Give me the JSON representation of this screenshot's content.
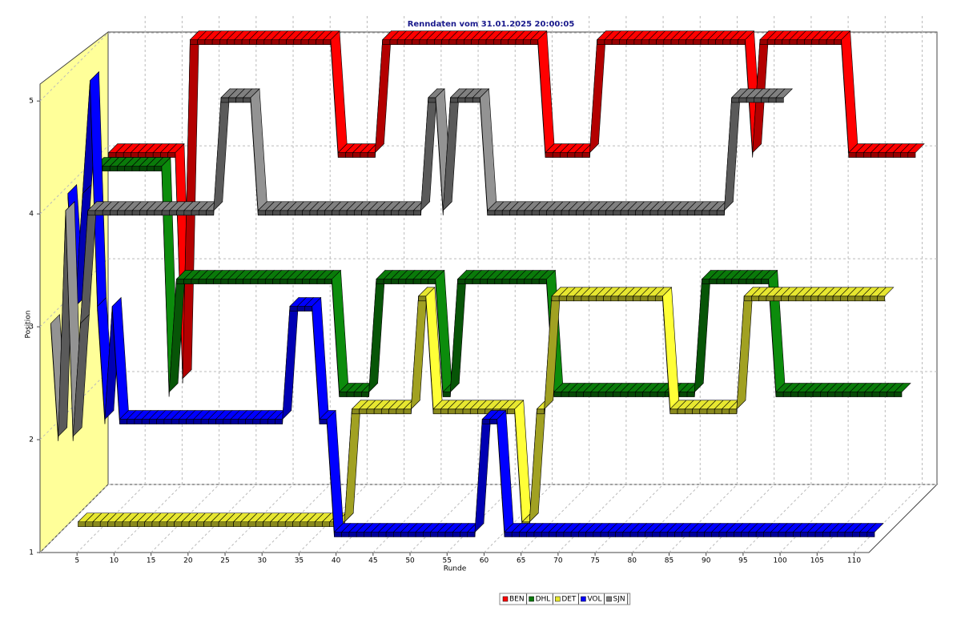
{
  "chart_data": {
    "type": "ribbon3d",
    "title": "Renndaten vom 31.01.2025 20:00:05",
    "xlabel": "Runde",
    "ylabel": "Position",
    "x": [
      1,
      2,
      3,
      4,
      5,
      6,
      7,
      8,
      9,
      10,
      11,
      12,
      13,
      14,
      15,
      16,
      17,
      18,
      19,
      20,
      21,
      22,
      23,
      24,
      25,
      26,
      27,
      28,
      29,
      30,
      31,
      32,
      33,
      34,
      35,
      36,
      37,
      38,
      39,
      40,
      41,
      42,
      43,
      44,
      45,
      46,
      47,
      48,
      49,
      50,
      51,
      52,
      53,
      54,
      55,
      56,
      57,
      58,
      59,
      60,
      61,
      62,
      63,
      64,
      65,
      66,
      67,
      68,
      69,
      70,
      71,
      72,
      73,
      74,
      75,
      76,
      77,
      78,
      79,
      80,
      81,
      82,
      83,
      84,
      85,
      86,
      87,
      88,
      89,
      90,
      91,
      92,
      93,
      94,
      95,
      96,
      97,
      98,
      99,
      100,
      101,
      102,
      103,
      104,
      105,
      106,
      107,
      108,
      109,
      110
    ],
    "xlim": [
      0,
      112
    ],
    "xticks": [
      5,
      10,
      15,
      20,
      25,
      30,
      35,
      40,
      45,
      50,
      55,
      60,
      65,
      70,
      75,
      80,
      85,
      90,
      95,
      100,
      105,
      110
    ],
    "ylim": [
      1,
      5.15
    ],
    "yticks": [
      1,
      2,
      3,
      4,
      5
    ],
    "grid": true,
    "series": [
      {
        "name": "BEN",
        "color": "#ff0000",
        "values": [
          4,
          4,
          4,
          4,
          4,
          4,
          4,
          4,
          4,
          4,
          2,
          5,
          5,
          5,
          5,
          5,
          5,
          5,
          5,
          5,
          5,
          5,
          5,
          5,
          5,
          5,
          5,
          5,
          5,
          5,
          5,
          4,
          4,
          4,
          4,
          4,
          4,
          5,
          5,
          5,
          5,
          5,
          5,
          5,
          5,
          5,
          5,
          5,
          5,
          5,
          5,
          5,
          5,
          5,
          5,
          5,
          5,
          5,
          5,
          4,
          4,
          4,
          4,
          4,
          4,
          4,
          5,
          5,
          5,
          5,
          5,
          5,
          5,
          5,
          5,
          5,
          5,
          5,
          5,
          5,
          5,
          5,
          5,
          5,
          5,
          5,
          5,
          4,
          5,
          5,
          5,
          5,
          5,
          5,
          5,
          5,
          5,
          5,
          5,
          5,
          4,
          4,
          4,
          4,
          4,
          4,
          4,
          4,
          4,
          4
        ]
      },
      {
        "name": "DHL",
        "color": "#0a7a0a",
        "values": [
          4,
          4,
          4,
          4,
          4,
          4,
          4,
          4,
          4,
          4,
          2,
          3,
          3,
          3,
          3,
          3,
          3,
          3,
          3,
          3,
          3,
          3,
          3,
          3,
          3,
          3,
          3,
          3,
          3,
          3,
          3,
          3,
          3,
          2,
          2,
          2,
          2,
          2,
          3,
          3,
          3,
          3,
          3,
          3,
          3,
          3,
          3,
          2,
          2,
          3,
          3,
          3,
          3,
          3,
          3,
          3,
          3,
          3,
          3,
          3,
          3,
          3,
          2,
          2,
          2,
          2,
          2,
          2,
          2,
          2,
          2,
          2,
          2,
          2,
          2,
          2,
          2,
          2,
          2,
          2,
          2,
          2,
          3,
          3,
          3,
          3,
          3,
          3,
          3,
          3,
          3,
          3,
          2,
          2,
          2,
          2,
          2,
          2,
          2,
          2,
          2,
          2,
          2,
          2,
          2,
          2,
          2,
          2,
          2,
          2
        ]
      },
      {
        "name": "DET",
        "color": "#e6e630",
        "values": [
          1,
          1,
          1,
          1,
          1,
          1,
          1,
          1,
          1,
          1,
          1,
          1,
          1,
          1,
          1,
          1,
          1,
          1,
          1,
          1,
          1,
          1,
          1,
          1,
          1,
          1,
          1,
          1,
          1,
          1,
          1,
          1,
          1,
          1,
          1,
          1,
          1,
          2,
          2,
          2,
          2,
          2,
          2,
          2,
          2,
          2,
          3,
          3,
          2,
          2,
          2,
          2,
          2,
          2,
          2,
          2,
          2,
          2,
          2,
          2,
          1,
          1,
          2,
          2,
          3,
          3,
          3,
          3,
          3,
          3,
          3,
          3,
          3,
          3,
          3,
          3,
          3,
          3,
          3,
          3,
          2,
          2,
          2,
          2,
          2,
          2,
          2,
          2,
          2,
          2,
          3,
          3,
          3,
          3,
          3,
          3,
          3,
          3,
          3,
          3,
          3,
          3,
          3,
          3,
          3,
          3,
          3,
          3,
          3,
          3
        ]
      },
      {
        "name": "VOL",
        "color": "#0000ff",
        "values": [
          4,
          3,
          4,
          5,
          3,
          2,
          3,
          2,
          2,
          2,
          2,
          2,
          2,
          2,
          2,
          2,
          2,
          2,
          2,
          2,
          2,
          2,
          2,
          2,
          2,
          2,
          2,
          2,
          2,
          2,
          3,
          3,
          3,
          3,
          2,
          2,
          1,
          1,
          1,
          1,
          1,
          1,
          1,
          1,
          1,
          1,
          1,
          1,
          1,
          1,
          1,
          1,
          1,
          1,
          1,
          1,
          2,
          2,
          2,
          1,
          1,
          1,
          1,
          1,
          1,
          1,
          1,
          1,
          1,
          1,
          1,
          1,
          1,
          1,
          1,
          1,
          1,
          1,
          1,
          1,
          1,
          1,
          1,
          1,
          1,
          1,
          1,
          1,
          1,
          1,
          1,
          1,
          1,
          1,
          1,
          1,
          1,
          1,
          1,
          1,
          1,
          1,
          1,
          1,
          1,
          1,
          1,
          1,
          1,
          1
        ]
      },
      {
        "name": "SJN",
        "color": "#808080",
        "values": [
          3,
          2,
          4,
          2,
          3,
          4,
          4,
          4,
          4,
          4,
          4,
          4,
          4,
          4,
          4,
          4,
          4,
          4,
          4,
          4,
          4,
          4,
          4,
          5,
          5,
          5,
          5,
          5,
          4,
          4,
          4,
          4,
          4,
          4,
          4,
          4,
          4,
          4,
          4,
          4,
          4,
          4,
          4,
          4,
          4,
          4,
          4,
          4,
          4,
          4,
          4,
          5,
          5,
          4,
          5,
          5,
          5,
          5,
          5,
          4,
          4,
          4,
          4,
          4,
          4,
          4,
          4,
          4,
          4,
          4,
          4,
          4,
          4,
          4,
          4,
          4,
          4,
          4,
          4,
          4,
          4,
          4,
          4,
          4,
          4,
          4,
          4,
          4,
          4,
          4,
          4,
          4,
          5,
          5,
          5,
          5,
          5,
          5,
          5,
          5,
          null,
          null,
          null,
          null,
          null,
          null,
          null,
          null,
          null,
          null
        ]
      }
    ]
  }
}
